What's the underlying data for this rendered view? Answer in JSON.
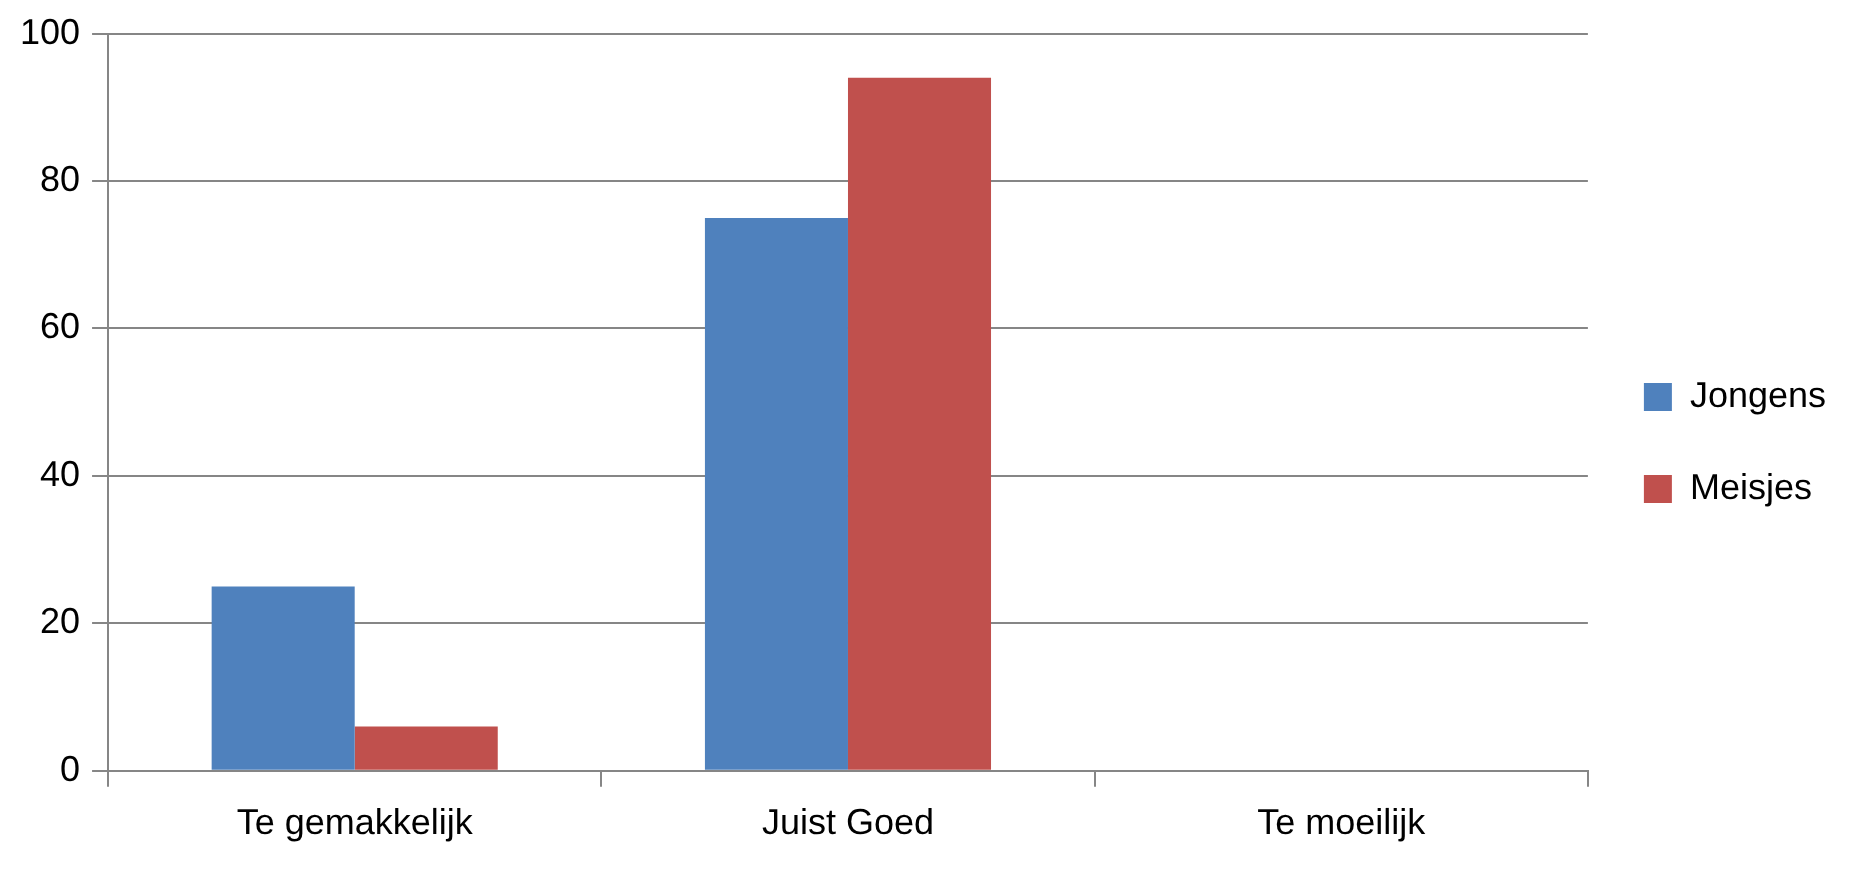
{
  "chart_data": {
    "type": "bar",
    "categories": [
      "Te gemakkelijk",
      "Juist Goed",
      "Te moeilijk"
    ],
    "series": [
      {
        "name": "Jongens",
        "color": "#4f81bd",
        "values": [
          25,
          75,
          0
        ]
      },
      {
        "name": "Meisjes",
        "color": "#c0504d",
        "values": [
          6,
          94,
          0
        ]
      }
    ],
    "ylim": [
      0,
      100
    ],
    "yticks": [
      0,
      20,
      40,
      60,
      80,
      100
    ],
    "grid": "y",
    "legend": "right"
  }
}
